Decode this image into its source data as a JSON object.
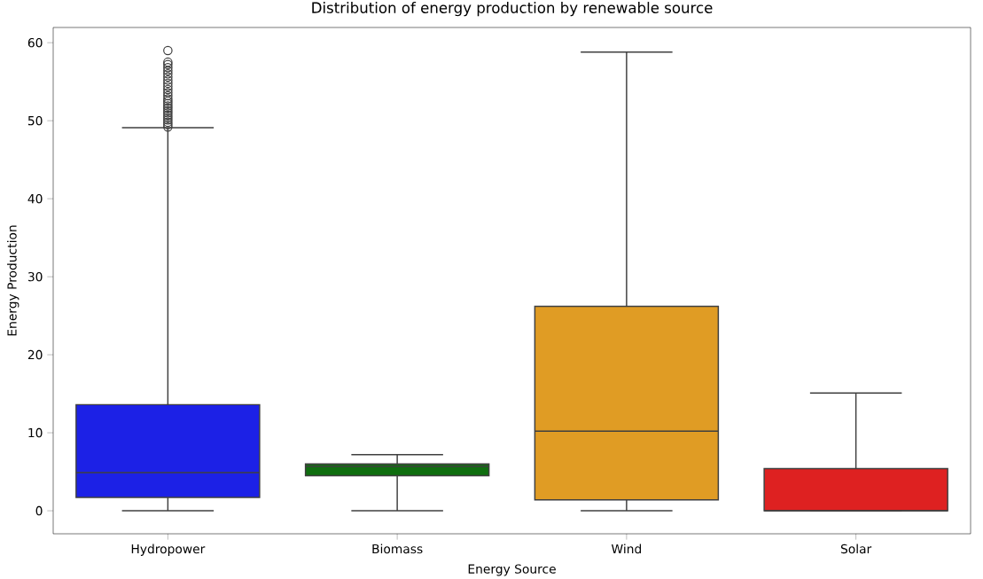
{
  "chart_data": {
    "type": "box",
    "title": "Distribution of energy production by renewable source",
    "xlabel": "Energy Source",
    "ylabel": "Energy Production",
    "categories": [
      "Hydropower",
      "Biomass",
      "Wind",
      "Solar"
    ],
    "colors": [
      "#1c21e6",
      "#0f6e0f",
      "#e09c24",
      "#de2121"
    ],
    "boxes": [
      {
        "low": 0,
        "q1": 1.7,
        "median": 4.9,
        "q3": 13.6,
        "high": 49.1,
        "outliers": [
          49.2,
          49.5,
          49.8,
          50.1,
          50.4,
          50.7,
          51.0,
          51.3,
          51.6,
          51.9,
          52.2,
          52.5,
          52.8,
          53.2,
          53.6,
          54.0,
          54.4,
          54.8,
          55.2,
          55.6,
          56.0,
          56.4,
          56.8,
          57.2,
          57.5,
          59.0
        ]
      },
      {
        "low": 0,
        "q1": 4.5,
        "median": 5.7,
        "q3": 6.0,
        "high": 7.2
      },
      {
        "low": 0,
        "q1": 1.4,
        "median": 10.2,
        "q3": 26.2,
        "high": 58.8
      },
      {
        "low": 0,
        "q1": 0,
        "median": 0,
        "q3": 5.4,
        "high": 15.1
      }
    ],
    "ylim": [
      -2.95,
      61.95
    ],
    "yticks": [
      0,
      10,
      20,
      30,
      40,
      50,
      60
    ],
    "marker": "circle",
    "grid": false
  }
}
